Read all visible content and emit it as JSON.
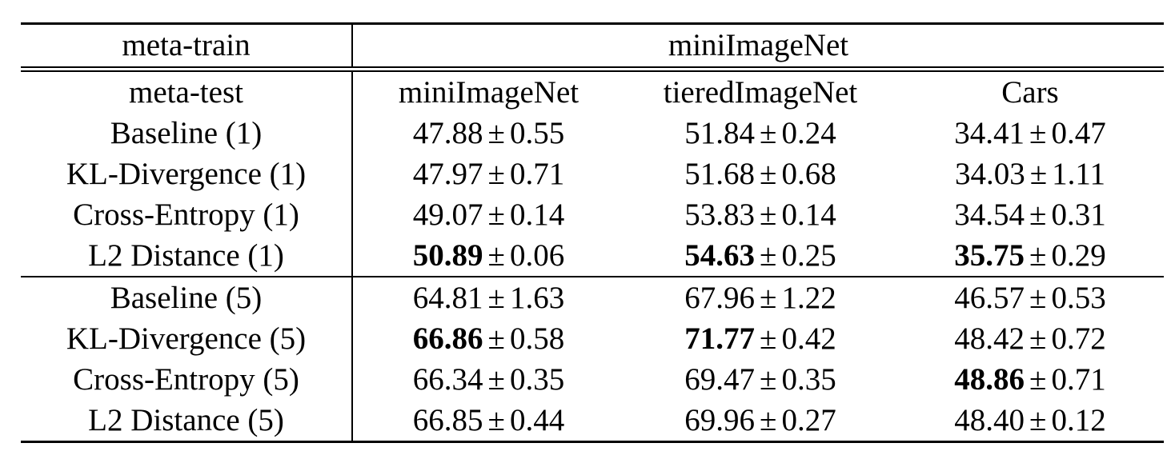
{
  "table": {
    "header": {
      "meta_train_label": "meta-train",
      "meta_train_value": "miniImageNet",
      "meta_test_label": "meta-test",
      "columns": [
        "miniImageNet",
        "tieredImageNet",
        "Cars"
      ]
    },
    "pm_symbol": "±",
    "groups": [
      {
        "rows": [
          {
            "method": "Baseline (1)",
            "cells": [
              {
                "mean": "47.88",
                "std": "0.55",
                "bold": false
              },
              {
                "mean": "51.84",
                "std": "0.24",
                "bold": false
              },
              {
                "mean": "34.41",
                "std": "0.47",
                "bold": false
              }
            ]
          },
          {
            "method": "KL-Divergence (1)",
            "cells": [
              {
                "mean": "47.97",
                "std": "0.71",
                "bold": false
              },
              {
                "mean": "51.68",
                "std": "0.68",
                "bold": false
              },
              {
                "mean": "34.03",
                "std": "1.11",
                "bold": false
              }
            ]
          },
          {
            "method": "Cross-Entropy (1)",
            "cells": [
              {
                "mean": "49.07",
                "std": "0.14",
                "bold": false
              },
              {
                "mean": "53.83",
                "std": "0.14",
                "bold": false
              },
              {
                "mean": "34.54",
                "std": "0.31",
                "bold": false
              }
            ]
          },
          {
            "method": "L2 Distance (1)",
            "cells": [
              {
                "mean": "50.89",
                "std": "0.06",
                "bold": true
              },
              {
                "mean": "54.63",
                "std": "0.25",
                "bold": true
              },
              {
                "mean": "35.75",
                "std": "0.29",
                "bold": true
              }
            ]
          }
        ]
      },
      {
        "rows": [
          {
            "method": "Baseline (5)",
            "cells": [
              {
                "mean": "64.81",
                "std": "1.63",
                "bold": false
              },
              {
                "mean": "67.96",
                "std": "1.22",
                "bold": false
              },
              {
                "mean": "46.57",
                "std": "0.53",
                "bold": false
              }
            ]
          },
          {
            "method": "KL-Divergence (5)",
            "cells": [
              {
                "mean": "66.86",
                "std": "0.58",
                "bold": true
              },
              {
                "mean": "71.77",
                "std": "0.42",
                "bold": true
              },
              {
                "mean": "48.42",
                "std": "0.72",
                "bold": false
              }
            ]
          },
          {
            "method": "Cross-Entropy (5)",
            "cells": [
              {
                "mean": "66.34",
                "std": "0.35",
                "bold": false
              },
              {
                "mean": "69.47",
                "std": "0.35",
                "bold": false
              },
              {
                "mean": "48.86",
                "std": "0.71",
                "bold": true
              }
            ]
          },
          {
            "method": "L2 Distance (5)",
            "cells": [
              {
                "mean": "66.85",
                "std": "0.44",
                "bold": false
              },
              {
                "mean": "69.96",
                "std": "0.27",
                "bold": false
              },
              {
                "mean": "48.40",
                "std": "0.12",
                "bold": false
              }
            ]
          }
        ]
      }
    ]
  }
}
